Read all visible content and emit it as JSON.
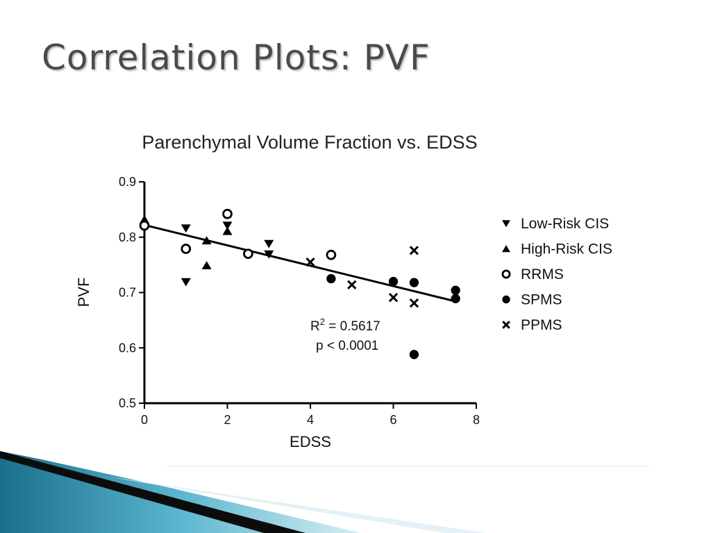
{
  "slide": {
    "title": "Correlation Plots: PVF"
  },
  "chart_data": {
    "type": "scatter",
    "title": "Parenchymal Volume Fraction vs. EDSS",
    "xlabel": "EDSS",
    "ylabel": "PVF",
    "xlim": [
      0,
      8
    ],
    "ylim": [
      0.5,
      0.9
    ],
    "xticks": [
      "0",
      "2",
      "4",
      "6",
      "8"
    ],
    "yticks": [
      "0.5",
      "0.6",
      "0.7",
      "0.8",
      "0.9"
    ],
    "grid": false,
    "legend_position": "right",
    "series": [
      {
        "name": "Low-Risk CIS",
        "marker": "triangle-down",
        "points": [
          [
            1,
            0.816
          ],
          [
            1,
            0.719
          ],
          [
            2,
            0.821
          ],
          [
            3,
            0.788
          ],
          [
            3,
            0.769
          ]
        ]
      },
      {
        "name": "High-Risk CIS",
        "marker": "triangle-up",
        "points": [
          [
            0,
            0.832
          ],
          [
            1.5,
            0.794
          ],
          [
            1.5,
            0.749
          ],
          [
            2,
            0.811
          ]
        ]
      },
      {
        "name": "RRMS",
        "marker": "circle-open",
        "points": [
          [
            0,
            0.821
          ],
          [
            1,
            0.779
          ],
          [
            2,
            0.842
          ],
          [
            2.5,
            0.77
          ],
          [
            4.5,
            0.768
          ]
        ]
      },
      {
        "name": "SPMS",
        "marker": "circle-filled",
        "points": [
          [
            4.5,
            0.725
          ],
          [
            6,
            0.72
          ],
          [
            6.5,
            0.718
          ],
          [
            6.5,
            0.588
          ],
          [
            7.5,
            0.704
          ],
          [
            7.5,
            0.689
          ]
        ]
      },
      {
        "name": "PPMS",
        "marker": "x",
        "points": [
          [
            4,
            0.755
          ],
          [
            5,
            0.714
          ],
          [
            6,
            0.691
          ],
          [
            6.5,
            0.776
          ],
          [
            6.5,
            0.681
          ]
        ]
      }
    ],
    "regression_line": {
      "x": [
        0,
        7.5
      ],
      "y": [
        0.822,
        0.684
      ]
    },
    "annotations": {
      "r2_prefix": "R",
      "r2_sup": "2",
      "r2_value": " = 0.5617",
      "p_value": "p < 0.0001"
    }
  }
}
